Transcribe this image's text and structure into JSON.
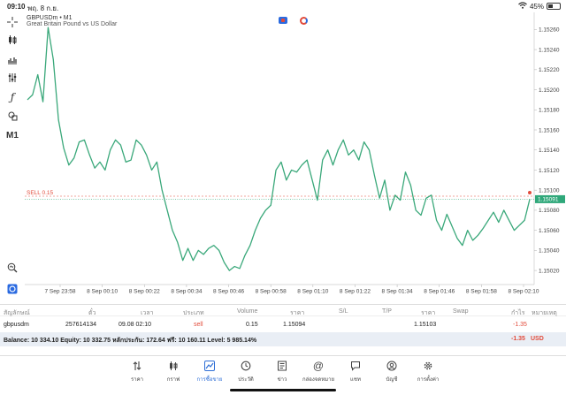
{
  "status_bar": {
    "time": "09:10",
    "date": "พฤ. 8 ก.ย.",
    "battery": "45%",
    "battery_level": 0.45
  },
  "toolbar": {
    "timeframe": "M1"
  },
  "chart": {
    "symbol_line": "GBPUSDm • M1",
    "description": "Great Britain Pound vs US Dollar",
    "sell_label": "SELL 0.15",
    "current_price": "1.15091",
    "line_color": "#3aa87a",
    "sell_color": "#e24b3b",
    "accent_price_bg": "#2fa87a"
  },
  "chart_data": {
    "type": "line",
    "x_ticks": [
      "7 Sep 23:58",
      "8 Sep 00:10",
      "8 Sep 00:22",
      "8 Sep 00:34",
      "8 Sep 00:46",
      "8 Sep 00:58",
      "8 Sep 01:10",
      "8 Sep 01:22",
      "8 Sep 01:34",
      "8 Sep 01:46",
      "8 Sep 01:58",
      "8 Sep 02:10"
    ],
    "y_ticks": [
      "1.15260",
      "1.15240",
      "1.15220",
      "1.15200",
      "1.15180",
      "1.15160",
      "1.15140",
      "1.15120",
      "1.15100",
      "1.15080",
      "1.15060",
      "1.15040",
      "1.15020"
    ],
    "ylim": [
      1.15006,
      1.1527
    ],
    "sell_level": 1.15094,
    "current": 1.15091,
    "values": [
      1.1519,
      1.15195,
      1.15215,
      1.15188,
      1.15262,
      1.1523,
      1.1517,
      1.15142,
      1.15125,
      1.15132,
      1.15148,
      1.1515,
      1.15135,
      1.15122,
      1.15128,
      1.1512,
      1.1514,
      1.1515,
      1.15145,
      1.15128,
      1.1513,
      1.1515,
      1.15145,
      1.15135,
      1.1512,
      1.15128,
      1.151,
      1.1508,
      1.1506,
      1.15048,
      1.1503,
      1.15042,
      1.1503,
      1.1504,
      1.15036,
      1.15042,
      1.15045,
      1.1504,
      1.15028,
      1.1502,
      1.15024,
      1.15022,
      1.15035,
      1.15045,
      1.1506,
      1.15072,
      1.1508,
      1.15085,
      1.1512,
      1.15128,
      1.1511,
      1.1512,
      1.15118,
      1.15125,
      1.1513,
      1.1511,
      1.1509,
      1.1513,
      1.1514,
      1.15125,
      1.1514,
      1.1515,
      1.15135,
      1.1514,
      1.1513,
      1.15148,
      1.1514,
      1.15115,
      1.15092,
      1.1511,
      1.1508,
      1.15095,
      1.1509,
      1.15118,
      1.15105,
      1.1508,
      1.15075,
      1.15092,
      1.15095,
      1.1507,
      1.1506,
      1.15076,
      1.15064,
      1.15052,
      1.15045,
      1.1506,
      1.1505,
      1.15055,
      1.15062,
      1.1507,
      1.15078,
      1.15068,
      1.1508,
      1.1507,
      1.1506,
      1.15065,
      1.1507,
      1.15091
    ]
  },
  "table": {
    "headers": [
      "สัญลักษณ์",
      "ตั๋ว",
      "เวลา",
      "ประเภท",
      "Volume",
      "ราคา",
      "S/L",
      "T/P",
      "ราคา",
      "Swap",
      "กำไร",
      "หมายเหตุ"
    ],
    "row": {
      "symbol": "gbpusdm",
      "ticket": "257614134",
      "time": "09.08 02:10",
      "type": "sell",
      "volume": "0.15",
      "open_price": "1.15094",
      "current_price": "1.15103",
      "profit": "-1.35"
    },
    "balance": {
      "text": "Balance: 10 334.10 Equity: 10 332.75 หลักประกัน: 172.64 ฟรี: 10 160.11 Level: 5 985.14%",
      "profit": "-1.35",
      "currency": "USD"
    }
  },
  "bottom_nav": {
    "items": [
      {
        "label": "ราคา",
        "icon": "quotes-arrows-icon"
      },
      {
        "label": "กราฟ",
        "icon": "chart-candles-icon"
      },
      {
        "label": "การซื้อขาย",
        "icon": "trade-chart-icon"
      },
      {
        "label": "ประวัติ",
        "icon": "history-clock-icon"
      },
      {
        "label": "ข่าว",
        "icon": "news-book-icon"
      },
      {
        "label": "กล่องจดหมาย",
        "icon": "mail-at-icon"
      },
      {
        "label": "แชท",
        "icon": "chat-bubble-icon"
      },
      {
        "label": "บัญชี",
        "icon": "account-user-icon"
      },
      {
        "label": "การตั้งค่า",
        "icon": "settings-gear-icon"
      }
    ],
    "active_color": "#2f6fd6"
  }
}
